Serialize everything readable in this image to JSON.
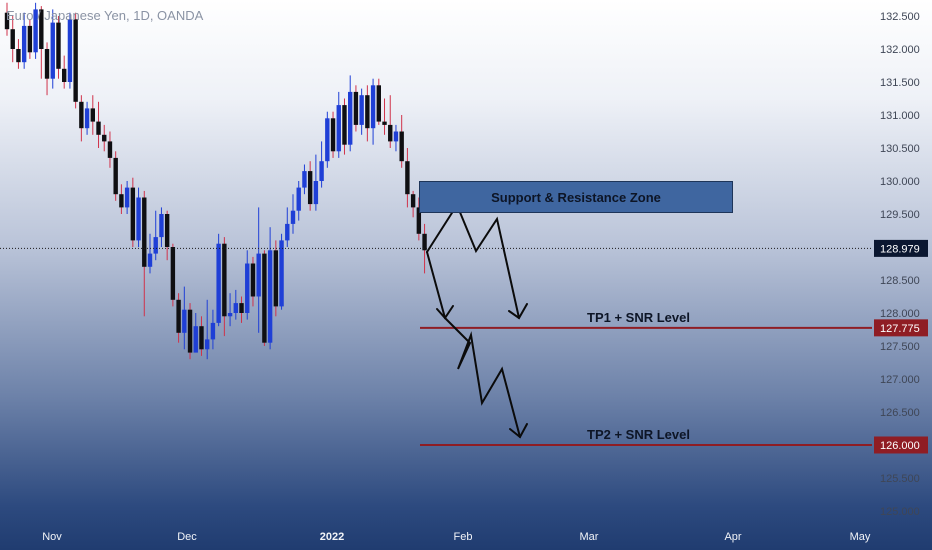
{
  "header": {
    "symbol_text": "Euro / Japanese Yen, 1D, OANDA"
  },
  "colors": {
    "up_candle": "#1f3fd6",
    "down_candle": "#0f0f12",
    "wick_up": "#1f3fd6",
    "wick_down": "#d0324a",
    "level_line": "#8f1d24",
    "tag_dark": "#0b1730",
    "tag_level": "#8f1d24",
    "arrow": "#0b0b0b",
    "zone_fill": "#3f66a0"
  },
  "annotations": {
    "zone_label": "Support & Resistance Zone",
    "tp1_label": "TP1 + SNR Level",
    "tp2_label": "TP2 + SNR Level"
  },
  "chart_data": {
    "type": "candlestick",
    "title": "Euro / Japanese Yen, 1D, OANDA",
    "ylim": [
      124.8,
      132.75
    ],
    "y_ticks": [
      "125.000",
      "125.500",
      "126.000",
      "126.500",
      "127.000",
      "127.500",
      "128.000",
      "128.500",
      "129.000",
      "129.500",
      "130.000",
      "130.500",
      "131.000",
      "131.500",
      "132.000",
      "132.500"
    ],
    "x_ticks": [
      "Nov",
      "Dec",
      "2022",
      "Feb",
      "Mar",
      "Apr",
      "May"
    ],
    "grid": false,
    "current_price": "128.979",
    "levels": [
      {
        "name": "TP1 + SNR Level",
        "value": "127.775"
      },
      {
        "name": "TP2 + SNR Level",
        "value": "126.000"
      }
    ],
    "zone": {
      "name": "Support & Resistance Zone",
      "low": 129.45,
      "high": 129.95
    },
    "candles": [
      [
        132.55,
        132.3,
        132.7,
        132.2
      ],
      [
        132.3,
        132.0,
        132.5,
        131.8
      ],
      [
        132.0,
        131.8,
        132.15,
        131.7
      ],
      [
        131.8,
        132.35,
        132.55,
        131.7
      ],
      [
        132.35,
        131.95,
        132.45,
        131.85
      ],
      [
        131.95,
        132.6,
        132.7,
        131.85
      ],
      [
        132.6,
        132.0,
        132.65,
        131.55
      ],
      [
        132.0,
        131.55,
        132.1,
        131.3
      ],
      [
        131.55,
        132.4,
        132.6,
        131.4
      ],
      [
        132.4,
        131.7,
        132.5,
        131.55
      ],
      [
        131.7,
        131.5,
        131.9,
        131.4
      ],
      [
        131.5,
        132.45,
        132.55,
        131.4
      ],
      [
        132.45,
        131.2,
        132.55,
        131.1
      ],
      [
        131.2,
        130.8,
        131.3,
        130.6
      ],
      [
        130.8,
        131.1,
        131.2,
        130.7
      ],
      [
        131.1,
        130.9,
        131.3,
        130.7
      ],
      [
        130.9,
        130.7,
        131.2,
        130.5
      ],
      [
        130.7,
        130.6,
        130.85,
        130.45
      ],
      [
        130.6,
        130.35,
        130.75,
        130.2
      ],
      [
        130.35,
        129.8,
        130.45,
        129.7
      ],
      [
        129.8,
        129.6,
        129.95,
        129.5
      ],
      [
        129.6,
        129.9,
        130.0,
        129.5
      ],
      [
        129.9,
        129.1,
        130.05,
        129.0
      ],
      [
        129.1,
        129.75,
        129.9,
        129.0
      ],
      [
        129.75,
        128.7,
        129.85,
        127.95
      ],
      [
        128.7,
        128.9,
        129.2,
        128.6
      ],
      [
        128.9,
        129.15,
        129.55,
        128.8
      ],
      [
        129.15,
        129.5,
        129.6,
        129.0
      ],
      [
        129.5,
        129.0,
        129.55,
        128.8
      ],
      [
        129.0,
        128.2,
        129.05,
        128.1
      ],
      [
        128.2,
        127.7,
        128.3,
        127.55
      ],
      [
        127.7,
        128.05,
        128.4,
        127.45
      ],
      [
        128.05,
        127.4,
        128.15,
        127.3
      ],
      [
        127.4,
        127.8,
        128.0,
        127.5
      ],
      [
        127.8,
        127.45,
        127.95,
        127.35
      ],
      [
        127.45,
        127.6,
        128.2,
        127.3
      ],
      [
        127.6,
        127.85,
        128.05,
        127.45
      ],
      [
        127.85,
        129.05,
        129.2,
        127.8
      ],
      [
        129.05,
        127.95,
        129.15,
        127.65
      ],
      [
        127.95,
        128.0,
        128.3,
        127.8
      ],
      [
        128.0,
        128.15,
        128.35,
        127.9
      ],
      [
        128.15,
        128.0,
        128.25,
        127.85
      ],
      [
        128.0,
        128.75,
        128.95,
        127.9
      ],
      [
        128.75,
        128.25,
        128.85,
        128.1
      ],
      [
        128.25,
        128.9,
        129.6,
        127.7
      ],
      [
        128.9,
        127.55,
        128.95,
        127.5
      ],
      [
        127.55,
        128.95,
        129.3,
        127.45
      ],
      [
        128.95,
        128.1,
        129.1,
        127.95
      ],
      [
        128.1,
        129.1,
        129.2,
        128.05
      ],
      [
        129.1,
        129.35,
        129.6,
        129.0
      ],
      [
        129.35,
        129.55,
        129.8,
        129.2
      ],
      [
        129.55,
        129.9,
        130.0,
        129.4
      ],
      [
        129.9,
        130.15,
        130.25,
        129.8
      ],
      [
        130.15,
        129.65,
        130.3,
        129.55
      ],
      [
        129.65,
        130.0,
        130.4,
        129.55
      ],
      [
        130.0,
        130.3,
        130.6,
        129.9
      ],
      [
        130.3,
        130.95,
        131.05,
        130.2
      ],
      [
        130.95,
        130.45,
        131.05,
        130.35
      ],
      [
        130.45,
        131.15,
        131.35,
        130.35
      ],
      [
        131.15,
        130.55,
        131.25,
        130.4
      ],
      [
        130.55,
        131.35,
        131.6,
        130.45
      ],
      [
        131.35,
        130.85,
        131.45,
        130.75
      ],
      [
        130.85,
        131.3,
        131.4,
        130.7
      ],
      [
        131.3,
        130.8,
        131.45,
        130.6
      ],
      [
        130.8,
        131.45,
        131.55,
        130.55
      ],
      [
        131.45,
        130.9,
        131.55,
        130.85
      ],
      [
        130.9,
        130.85,
        131.25,
        130.7
      ],
      [
        130.85,
        130.6,
        131.3,
        130.5
      ],
      [
        130.6,
        130.75,
        130.85,
        130.45
      ],
      [
        130.75,
        130.3,
        131.0,
        130.2
      ],
      [
        130.3,
        129.8,
        130.5,
        129.6
      ],
      [
        129.8,
        129.6,
        129.85,
        129.45
      ],
      [
        129.6,
        129.2,
        129.75,
        129.1
      ],
      [
        129.2,
        128.95,
        129.35,
        128.6
      ]
    ]
  }
}
